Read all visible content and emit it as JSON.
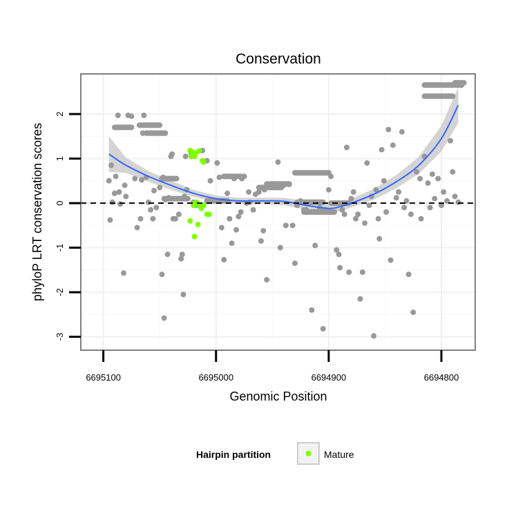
{
  "chart_data": {
    "type": "scatter",
    "title": "Conservation",
    "xlabel": "Genomic Position",
    "ylabel": "phyloP LRT conservation scores",
    "xlim": [
      6695120,
      6694770
    ],
    "ylim": [
      -3.3,
      2.9
    ],
    "x_reversed": true,
    "x_ticks": [
      6695100,
      6695000,
      6694900,
      6694800
    ],
    "x_tick_labels": [
      "6695100",
      "6695000",
      "6694900",
      "6694800"
    ],
    "y_ticks": [
      -3,
      -2,
      -1,
      0,
      1,
      2
    ],
    "y_tick_labels": [
      "-3",
      "-2",
      "-1",
      "0",
      "1",
      "2"
    ],
    "reference_line": {
      "y": 0,
      "style": "dashed"
    },
    "grid": true,
    "legend": {
      "title": "Hairpin partition",
      "position": "bottom",
      "entries": [
        "Mature"
      ]
    },
    "colors": {
      "point": "#999999",
      "mature": "#7FFF00",
      "smooth": "#3366FF",
      "ribbon": "#CCCCCC",
      "frame": "#7F7F7F"
    },
    "series": [
      {
        "name": "",
        "color": "#999999",
        "points": [
          [
            6695095,
            0.5
          ],
          [
            6695094,
            -0.38
          ],
          [
            6695093,
            0.85
          ],
          [
            6695092,
            0.02
          ],
          [
            6695090,
            0.22
          ],
          [
            6695089,
            0.6
          ],
          [
            6695087,
            1.97
          ],
          [
            6695086,
            0.25
          ],
          [
            6695085,
            -0.02
          ],
          [
            6695082,
            -1.57
          ],
          [
            6695081,
            0.4
          ],
          [
            6695080,
            0.15
          ],
          [
            6695078,
            1.97
          ],
          [
            6695075,
            1.95
          ],
          [
            6695072,
            0.55
          ],
          [
            6695070,
            -0.55
          ],
          [
            6695067,
            -0.35
          ],
          [
            6695066,
            0.52
          ],
          [
            6695065,
            1.57
          ],
          [
            6695064,
            1.97
          ],
          [
            6695062,
            0.58
          ],
          [
            6695060,
            0.02
          ],
          [
            6695058,
            -0.15
          ],
          [
            6695056,
            -0.35
          ],
          [
            6695055,
            0.28
          ],
          [
            6695053,
            -0.1
          ],
          [
            6695050,
            0.35
          ],
          [
            6695048,
            -1.6
          ],
          [
            6695047,
            0.58
          ],
          [
            6695046,
            -2.58
          ],
          [
            6695045,
            0.08
          ],
          [
            6695043,
            -1.15
          ],
          [
            6695042,
            0.12
          ],
          [
            6695041,
            0.55
          ],
          [
            6695040,
            1.05
          ],
          [
            6695039,
            1.1
          ],
          [
            6695038,
            -0.35
          ],
          [
            6695037,
            0.55
          ],
          [
            6695036,
            -0.35
          ],
          [
            6695034,
            0.1
          ],
          [
            6695033,
            -0.25
          ],
          [
            6695031,
            -1.25
          ],
          [
            6695030,
            -1.15
          ],
          [
            6695029,
            -2.05
          ],
          [
            6695028,
            0.15
          ],
          [
            6695027,
            1.05
          ],
          [
            6695026,
            0.3
          ],
          [
            6695022,
            1.12
          ],
          [
            6695020,
            0.02
          ],
          [
            6695018,
            -0.05
          ],
          [
            6695012,
            1.18
          ],
          [
            6695008,
            0.95
          ],
          [
            6695005,
            0.5
          ],
          [
            6694999,
            0.9
          ],
          [
            6694997,
            0.58
          ],
          [
            6694995,
            -0.55
          ],
          [
            6694993,
            -1.27
          ],
          [
            6694991,
            0.6
          ],
          [
            6694990,
            0.22
          ],
          [
            6694988,
            -0.35
          ],
          [
            6694986,
            -0.9
          ],
          [
            6694984,
            0.55
          ],
          [
            6694982,
            -0.6
          ],
          [
            6694980,
            -0.3
          ],
          [
            6694978,
            -0.2
          ],
          [
            6694977,
            0.55
          ],
          [
            6694975,
            0.6
          ],
          [
            6694973,
            0.0
          ],
          [
            6694971,
            0.25
          ],
          [
            6694970,
            0.02
          ],
          [
            6694967,
            -0.15
          ],
          [
            6694965,
            0.2
          ],
          [
            6694962,
            0.25
          ],
          [
            6694960,
            -0.85
          ],
          [
            6694958,
            -0.62
          ],
          [
            6694957,
            0.3
          ],
          [
            6694955,
            -1.72
          ],
          [
            6694952,
            0.4
          ],
          [
            6694950,
            0.35
          ],
          [
            6694948,
            0.42
          ],
          [
            6694945,
            0.92
          ],
          [
            6694943,
            -1.0
          ],
          [
            6694940,
            0.4
          ],
          [
            6694938,
            -0.5
          ],
          [
            6694935,
            0.42
          ],
          [
            6694932,
            -0.5
          ],
          [
            6694930,
            -1.35
          ],
          [
            6694928,
            -0.05
          ],
          [
            6694925,
            0.05
          ],
          [
            6694922,
            -0.15
          ],
          [
            6694920,
            -0.15
          ],
          [
            6694918,
            -0.2
          ],
          [
            6694915,
            -2.4
          ],
          [
            6694912,
            -0.95
          ],
          [
            6694908,
            -0.1
          ],
          [
            6694905,
            -2.82
          ],
          [
            6694903,
            -0.15
          ],
          [
            6694900,
            0.3
          ],
          [
            6694898,
            0.6
          ],
          [
            6694895,
            -0.2
          ],
          [
            6694893,
            -1.05
          ],
          [
            6694891,
            -1.15
          ],
          [
            6694890,
            -1.45
          ],
          [
            6694888,
            -0.15
          ],
          [
            6694886,
            -0.25
          ],
          [
            6694884,
            1.25
          ],
          [
            6694882,
            -1.55
          ],
          [
            6694880,
            0.1
          ],
          [
            6694878,
            0.25
          ],
          [
            6694876,
            -0.35
          ],
          [
            6694874,
            -0.25
          ],
          [
            6694872,
            -2.15
          ],
          [
            6694870,
            -1.55
          ],
          [
            6694868,
            -0.45
          ],
          [
            6694866,
            0.9
          ],
          [
            6694864,
            -0.05
          ],
          [
            6694862,
            0.15
          ],
          [
            6694860,
            -2.98
          ],
          [
            6694858,
            0.3
          ],
          [
            6694856,
            -0.35
          ],
          [
            6694855,
            -0.8
          ],
          [
            6694853,
            1.2
          ],
          [
            6694851,
            0.5
          ],
          [
            6694849,
            -0.2
          ],
          [
            6694847,
            1.65
          ],
          [
            6694845,
            -1.28
          ],
          [
            6694843,
            1.3
          ],
          [
            6694840,
            0.12
          ],
          [
            6694838,
            0.25
          ],
          [
            6694835,
            1.6
          ],
          [
            6694833,
            -0.1
          ],
          [
            6694831,
            0.05
          ],
          [
            6694829,
            -1.6
          ],
          [
            6694827,
            -0.25
          ],
          [
            6694825,
            -2.45
          ],
          [
            6694822,
            0.7
          ],
          [
            6694819,
            0.55
          ],
          [
            6694818,
            -0.35
          ],
          [
            6694815,
            1.05
          ],
          [
            6694812,
            0.45
          ],
          [
            6694810,
            -0.1
          ],
          [
            6694808,
            0.65
          ],
          [
            6694806,
            0.1
          ],
          [
            6694803,
            0.55
          ],
          [
            6694800,
            -0.05
          ],
          [
            6694798,
            0.25
          ],
          [
            6694795,
            0.05
          ],
          [
            6694792,
            1.4
          ],
          [
            6694790,
            0.7
          ],
          [
            6694788,
            0.15
          ],
          [
            6694785,
            0.02
          ]
        ],
        "segments": [
          [
            6695090,
            6695075,
            1.7
          ],
          [
            6695068,
            6695050,
            1.75
          ],
          [
            6695062,
            6695045,
            1.57
          ],
          [
            6695048,
            6695035,
            0.55
          ],
          [
            6695046,
            6695025,
            0.1
          ],
          [
            6695008,
            6694990,
            0.05
          ],
          [
            6694993,
            6694978,
            0.6
          ],
          [
            6694962,
            6694942,
            0.35
          ],
          [
            6694955,
            6694935,
            0.43
          ],
          [
            6694930,
            6694900,
            0.68
          ],
          [
            6694928,
            6694905,
            0.02
          ],
          [
            6694922,
            6694895,
            -0.2
          ],
          [
            6694898,
            6694882,
            0.0
          ],
          [
            6694815,
            6694782,
            2.65
          ],
          [
            6694788,
            6694780,
            2.7
          ],
          [
            6694815,
            6694790,
            2.4
          ]
        ]
      },
      {
        "name": "Mature",
        "color": "#7FFF00",
        "points": [
          [
            6695023,
            1.18
          ],
          [
            6695022,
            1.05
          ],
          [
            6695021,
            1.15
          ],
          [
            6695020,
            1.1
          ],
          [
            6695019,
            1.05
          ],
          [
            6695018,
            1.12
          ],
          [
            6695015,
            1.17
          ],
          [
            6695012,
            0.95
          ],
          [
            6695011,
            0.92
          ],
          [
            6695019,
            0.0
          ],
          [
            6695017,
            0.02
          ],
          [
            6695015,
            -0.05
          ],
          [
            6695013,
            -0.12
          ],
          [
            6695011,
            -0.05
          ],
          [
            6695008,
            -0.25
          ],
          [
            6695006,
            -0.25
          ],
          [
            6695020,
            -0.05
          ],
          [
            6695023,
            -0.4
          ],
          [
            6695016,
            -0.48
          ],
          [
            6695019,
            -0.75
          ]
        ]
      }
    ],
    "smooth": {
      "x": [
        6695095,
        6695080,
        6695060,
        6695040,
        6695020,
        6695000,
        6694980,
        6694960,
        6694940,
        6694920,
        6694900,
        6694890,
        6694880,
        6694860,
        6694840,
        6694820,
        6694800,
        6694785
      ],
      "y": [
        1.1,
        0.85,
        0.6,
        0.4,
        0.22,
        0.1,
        0.05,
        0.05,
        0.04,
        -0.05,
        -0.12,
        -0.08,
        0.0,
        0.2,
        0.48,
        0.85,
        1.45,
        2.2
      ],
      "lower": [
        0.7,
        0.68,
        0.48,
        0.3,
        0.14,
        0.03,
        -0.02,
        -0.02,
        -0.04,
        -0.15,
        -0.22,
        -0.18,
        -0.1,
        0.08,
        0.33,
        0.66,
        1.16,
        1.8
      ],
      "upper": [
        1.5,
        1.02,
        0.72,
        0.5,
        0.3,
        0.17,
        0.12,
        0.12,
        0.12,
        0.05,
        -0.02,
        0.02,
        0.1,
        0.32,
        0.63,
        1.04,
        1.74,
        2.6
      ]
    }
  }
}
